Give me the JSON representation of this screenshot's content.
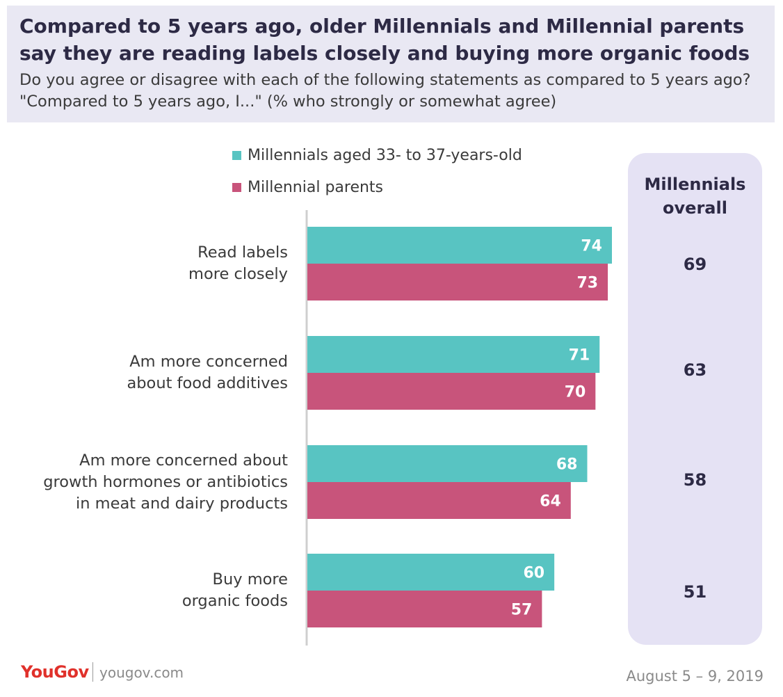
{
  "title": "Compared to 5 years ago, older Millennials and Millennial parents say they are reading labels closely and buying more organic foods",
  "subtitle": "Do you agree or disagree with each of the following statements as compared to 5 years ago? \"Compared to 5 years ago, I...\" (% who strongly or somewhat agree)",
  "overall_header": "Millennials overall",
  "footer": {
    "logo": "YouGov",
    "site": "yougov.com",
    "date": "August 5 – 9, 2019"
  },
  "colors": {
    "teal": "#58c4c2",
    "pink": "#c8547b",
    "panel": "#e5e2f4",
    "header_bg": "#e9e8f3",
    "brand_red": "#e0312b"
  },
  "chart_data": {
    "type": "bar",
    "orientation": "horizontal",
    "categories": [
      "Read labels more closely",
      "Am more concerned about food additives",
      "Am more concerned about growth hormones or antibiotics in meat and dairy products",
      "Buy more organic foods"
    ],
    "category_lines": [
      [
        "Read labels",
        "more closely"
      ],
      [
        "Am more concerned",
        "about food additives"
      ],
      [
        "Am more concerned about",
        "growth hormones or antibiotics",
        "in meat and dairy products"
      ],
      [
        "Buy more",
        "organic foods"
      ]
    ],
    "series": [
      {
        "name": "Millennials aged 33- to 37-years-old",
        "values": [
          74,
          71,
          68,
          60
        ],
        "color": "#58c4c2"
      },
      {
        "name": "Millennial parents",
        "values": [
          73,
          70,
          64,
          57
        ],
        "color": "#c8547b"
      }
    ],
    "overall": [
      69,
      63,
      58,
      51
    ],
    "xlim": [
      0,
      74
    ],
    "legend": "top"
  }
}
